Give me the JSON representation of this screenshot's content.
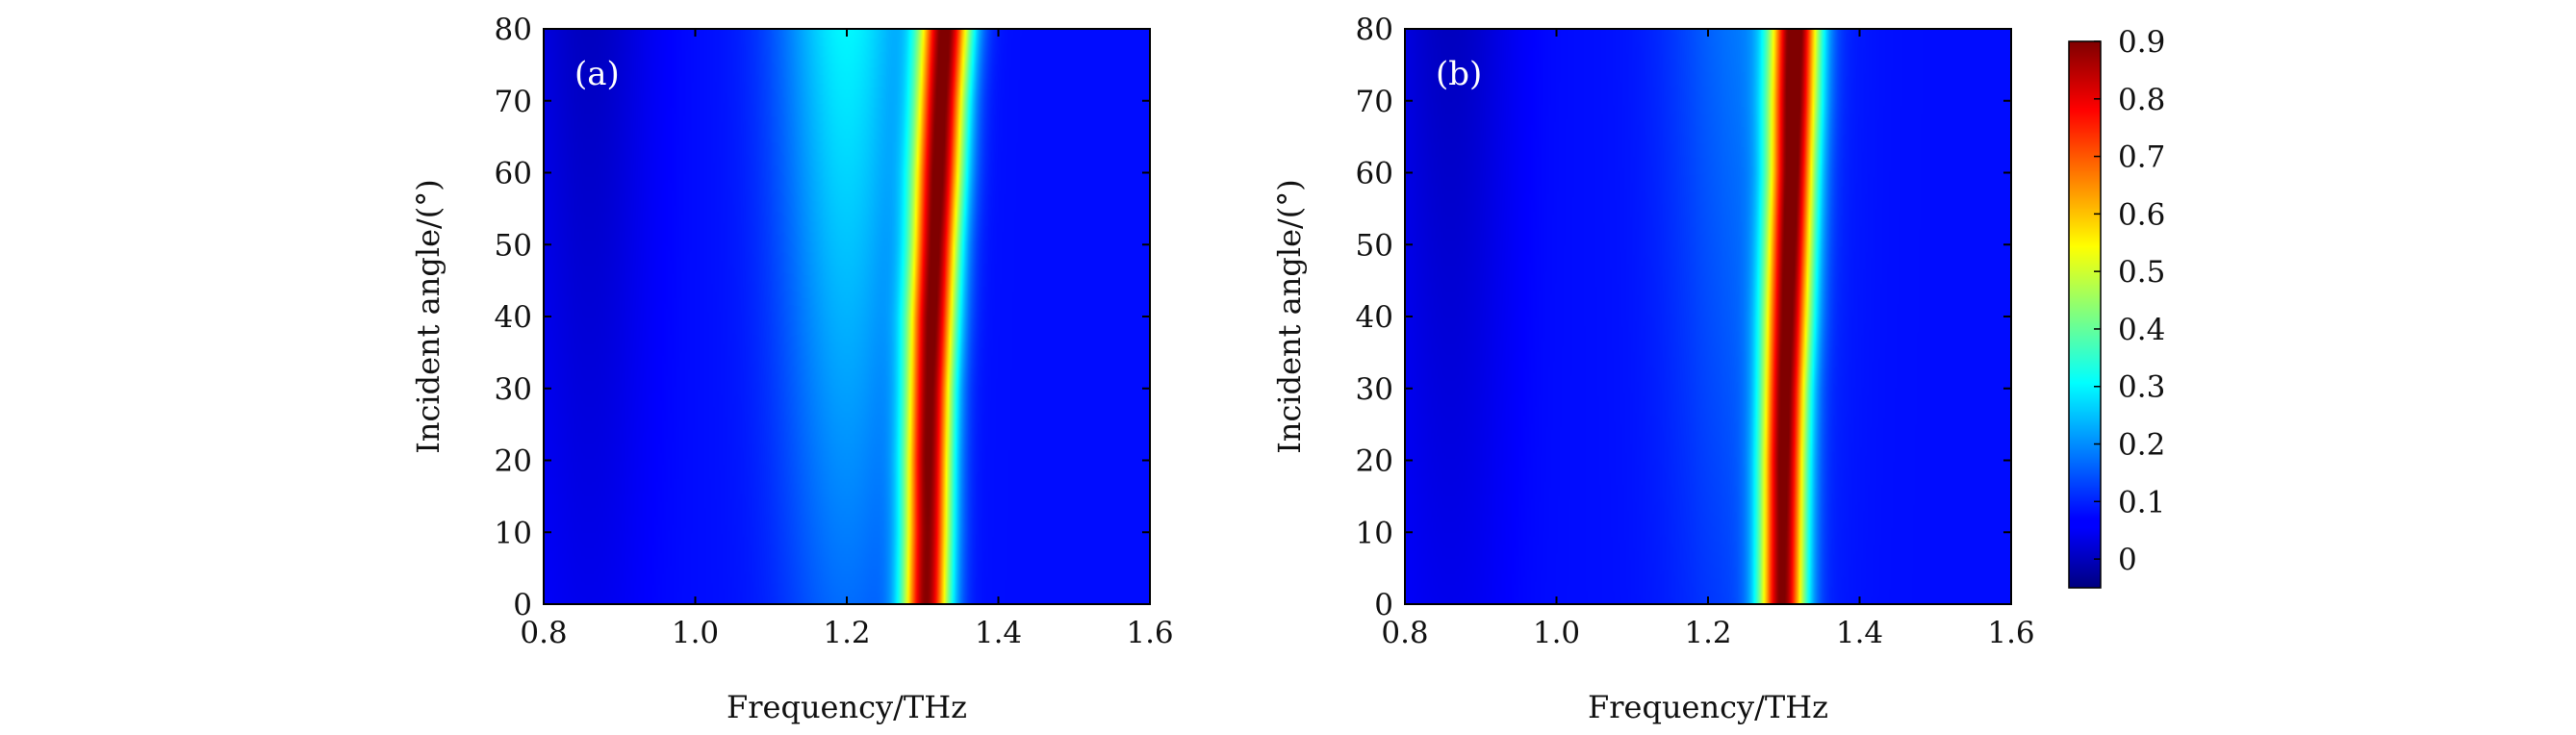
{
  "chart_data": [
    {
      "type": "heatmap",
      "panel_label": "(a)",
      "xlabel": "Frequency/THz",
      "ylabel": "Incident angle/(°)",
      "xlim": [
        0.8,
        1.6
      ],
      "ylim": [
        0,
        80
      ],
      "xticks": [
        "0.8",
        "1.0",
        "1.2",
        "1.4",
        "1.6"
      ],
      "yticks": [
        "0",
        "10",
        "20",
        "30",
        "40",
        "50",
        "60",
        "70",
        "80"
      ],
      "peak": {
        "angles": [
          0,
          10,
          20,
          30,
          40,
          50,
          60,
          70,
          80
        ],
        "center_frequency": [
          1.305,
          1.307,
          1.308,
          1.31,
          1.313,
          1.317,
          1.321,
          1.325,
          1.33
        ],
        "peak_value": [
          0.87,
          0.87,
          0.88,
          0.88,
          0.89,
          0.89,
          0.9,
          0.9,
          0.9
        ],
        "width": [
          0.031,
          0.031,
          0.031,
          0.031,
          0.032,
          0.032,
          0.033,
          0.033,
          0.034
        ]
      },
      "background": {
        "base_level": 0.08,
        "broad_feature": {
          "center_frequency": 1.2,
          "level_at_0deg": 0.09,
          "level_at_80deg": 0.22,
          "width": 0.09
        }
      }
    },
    {
      "type": "heatmap",
      "panel_label": "(b)",
      "xlabel": "Frequency/THz",
      "ylabel": "Incident angle/(°)",
      "xlim": [
        0.8,
        1.6
      ],
      "ylim": [
        0,
        80
      ],
      "xticks": [
        "0.8",
        "1.0",
        "1.2",
        "1.4",
        "1.6"
      ],
      "yticks": [
        "0",
        "10",
        "20",
        "30",
        "40",
        "50",
        "60",
        "70",
        "80"
      ],
      "peak": {
        "angles": [
          0,
          10,
          20,
          30,
          40,
          50,
          60,
          70,
          80
        ],
        "center_frequency": [
          1.298,
          1.299,
          1.3,
          1.302,
          1.305,
          1.308,
          1.311,
          1.313,
          1.315
        ],
        "peak_value": [
          0.87,
          0.87,
          0.88,
          0.88,
          0.88,
          0.89,
          0.89,
          0.9,
          0.9
        ],
        "width": [
          0.03,
          0.03,
          0.03,
          0.03,
          0.031,
          0.031,
          0.031,
          0.032,
          0.032
        ]
      },
      "background": {
        "base_level": 0.08,
        "broad_feature": {
          "center_frequency": 1.25,
          "level_at_0deg": 0.05,
          "level_at_80deg": 0.1,
          "width": 0.1
        }
      }
    }
  ],
  "colorbar": {
    "ticks": [
      "0",
      "0.1",
      "0.2",
      "0.3",
      "0.4",
      "0.5",
      "0.6",
      "0.7",
      "0.8",
      "0.9"
    ],
    "range": [
      -0.05,
      0.9
    ],
    "colormap": "jet"
  }
}
